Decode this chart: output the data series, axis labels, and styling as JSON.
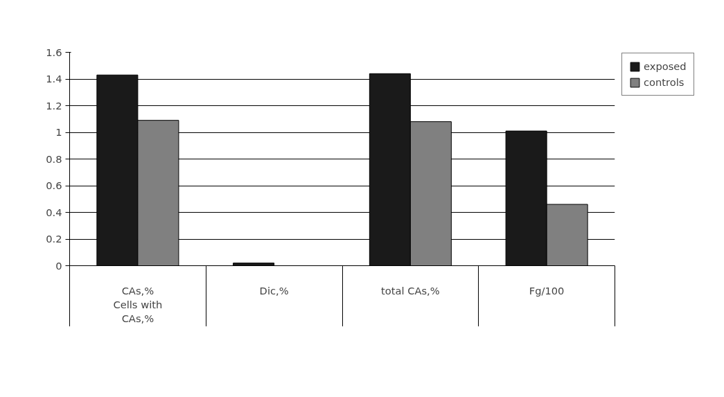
{
  "chart_data": {
    "type": "bar",
    "categories": [
      "CAs,%\nCells with\nCAs,%",
      "Dic,%",
      "total CAs,%",
      "Fg/100"
    ],
    "series": [
      {
        "name": "exposed",
        "color": "#1a1a1a",
        "values": [
          1.43,
          0.02,
          1.44,
          1.01
        ]
      },
      {
        "name": "controls",
        "color": "#808080",
        "values": [
          1.09,
          null,
          1.08,
          0.46
        ]
      }
    ],
    "ylim": [
      0,
      1.6
    ],
    "yticks": [
      0,
      0.2,
      0.4,
      0.6,
      0.8,
      1,
      1.2,
      1.4,
      1.6
    ],
    "grid": "y",
    "legend": "top right"
  }
}
